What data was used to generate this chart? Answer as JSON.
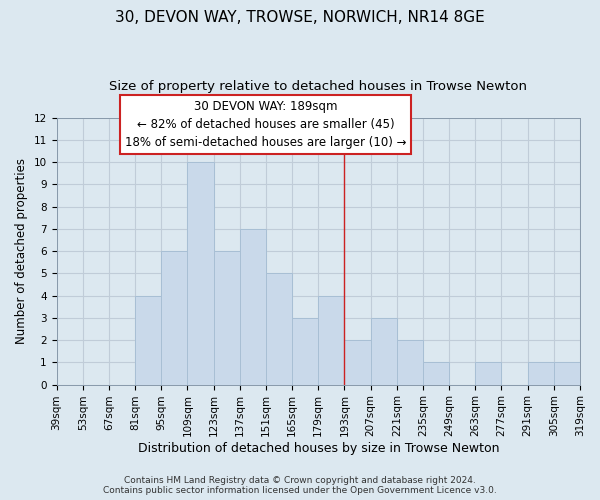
{
  "title": "30, DEVON WAY, TROWSE, NORWICH, NR14 8GE",
  "subtitle": "Size of property relative to detached houses in Trowse Newton",
  "xlabel": "Distribution of detached houses by size in Trowse Newton",
  "ylabel": "Number of detached properties",
  "footer_line1": "Contains HM Land Registry data © Crown copyright and database right 2024.",
  "footer_line2": "Contains public sector information licensed under the Open Government Licence v3.0.",
  "annotation_line1": "30 DEVON WAY: 189sqm",
  "annotation_line2": "← 82% of detached houses are smaller (45)",
  "annotation_line3": "18% of semi-detached houses are larger (10) →",
  "bar_color": "#c9d9ea",
  "bar_edge_color": "#a8bfd4",
  "vline_color": "#cc2222",
  "vline_x": 193,
  "bin_edges": [
    39,
    53,
    67,
    81,
    95,
    109,
    123,
    137,
    151,
    165,
    179,
    193,
    207,
    221,
    235,
    249,
    263,
    277,
    291,
    305,
    319
  ],
  "bin_counts": [
    0,
    0,
    0,
    4,
    6,
    10,
    6,
    7,
    5,
    3,
    4,
    2,
    3,
    2,
    1,
    0,
    1,
    0,
    1,
    1
  ],
  "ylim": [
    0,
    12
  ],
  "yticks": [
    0,
    1,
    2,
    3,
    4,
    5,
    6,
    7,
    8,
    9,
    10,
    11,
    12
  ],
  "grid_color": "#c0ccd8",
  "background_color": "#dce8f0",
  "title_fontsize": 11,
  "subtitle_fontsize": 9.5,
  "xlabel_fontsize": 9,
  "ylabel_fontsize": 8.5,
  "tick_fontsize": 7.5,
  "annotation_fontsize": 8.5,
  "footer_fontsize": 6.5
}
